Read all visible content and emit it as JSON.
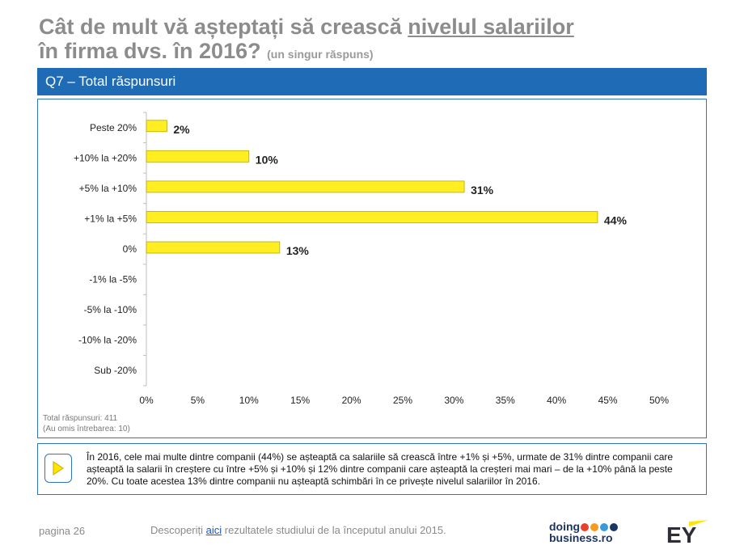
{
  "header": {
    "title_part1": "Cât de mult vă așteptați să crească ",
    "title_underlined": "nivelul salariilor",
    "title_line2": "în firma dvs. în 2016?",
    "title_note": "(un singur răspuns)"
  },
  "section": {
    "label": "Q7 – Total răspunsuri"
  },
  "chart_data": {
    "type": "bar",
    "orientation": "horizontal",
    "categories": [
      "Peste 20%",
      "+10% la +20%",
      "+5% la +10%",
      "+1% la +5%",
      "0%",
      "-1% la -5%",
      "-5% la -10%",
      "-10% la -20%",
      "Sub -20%"
    ],
    "values": [
      2,
      10,
      31,
      44,
      13,
      0,
      0,
      0,
      0
    ],
    "data_labels": [
      "2%",
      "10%",
      "31%",
      "44%",
      "13%",
      "",
      "",
      "",
      ""
    ],
    "x_ticks": [
      "0%",
      "5%",
      "10%",
      "15%",
      "20%",
      "25%",
      "30%",
      "35%",
      "40%",
      "45%",
      "50%"
    ],
    "xlim": [
      0,
      50
    ],
    "bar_color": "#ffee22",
    "bar_border": "#b8a800",
    "grid": false
  },
  "footnote": {
    "line1": "Total răspunsuri: 411",
    "line2": "(Au omis întrebarea: 10)"
  },
  "summary": {
    "text": "În 2016, cele mai multe dintre companii (44%) se așteaptă ca salariile să crească între +1% și +5%, urmate de 31% dintre companii care așteaptă la salarii în creștere cu între +5% și +10% și 12% dintre companii care așteaptă la creșteri mai mari – de la +10% până la peste 20%. Cu toate acestea 13% dintre companii nu așteaptă schimbări în ce privește nivelul salariilor în 2016."
  },
  "footer": {
    "page": "pagina 26",
    "discover_before": "Descoperiți ",
    "discover_link": "aici",
    "discover_after": " rezultatele studiului de la începutul anului 2015.",
    "logo_line1": "doing",
    "logo_line2": "business.ro",
    "ey_logo": "EY"
  },
  "colors": {
    "accent_blue": "#1f6bb5",
    "border_blue": "#2f75c0",
    "logo_dots": [
      "#e8402a",
      "#f59b1f",
      "#3a9ad9",
      "#1b3565"
    ],
    "ey_yellow": "#ffe600"
  }
}
